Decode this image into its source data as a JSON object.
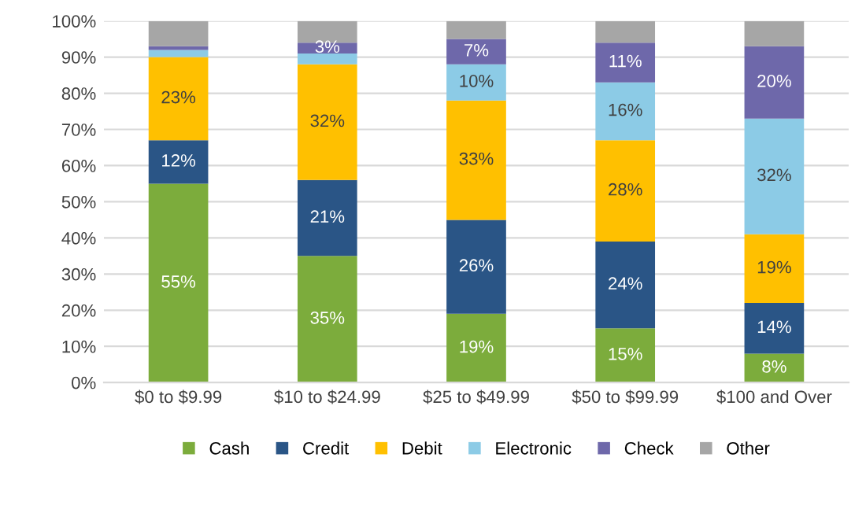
{
  "chart_data": {
    "type": "bar",
    "stacked": true,
    "categories": [
      "$0 to $9.99",
      "$10 to $24.99",
      "$25 to $49.99",
      "$50 to $99.99",
      "$100 and Over"
    ],
    "series": [
      {
        "name": "Cash",
        "color": "#7cac3c",
        "values": [
          55,
          35,
          19,
          15,
          8
        ],
        "value_labels": [
          "55%",
          "35%",
          "19%",
          "15%",
          "8%"
        ]
      },
      {
        "name": "Credit",
        "color": "#2a5586",
        "values": [
          12,
          21,
          26,
          24,
          14
        ],
        "value_labels": [
          "12%",
          "21%",
          "26%",
          "24%",
          "14%"
        ]
      },
      {
        "name": "Debit",
        "color": "#ffc000",
        "values": [
          23,
          32,
          33,
          28,
          19
        ],
        "value_labels": [
          "23%",
          "32%",
          "33%",
          "28%",
          "19%"
        ]
      },
      {
        "name": "Electronic",
        "color": "#8ccbe6",
        "values": [
          2,
          3,
          10,
          16,
          32
        ],
        "value_labels": [
          null,
          null,
          "10%",
          "16%",
          "32%"
        ]
      },
      {
        "name": "Check",
        "color": "#6e68aa",
        "values": [
          1,
          3,
          7,
          11,
          20
        ],
        "value_labels": [
          null,
          "3%",
          "7%",
          "11%",
          "20%"
        ]
      },
      {
        "name": "Other",
        "color": "#a6a6a6",
        "values": [
          7,
          6,
          5,
          6,
          7
        ],
        "value_labels": [
          null,
          null,
          null,
          null,
          null
        ]
      }
    ],
    "ylim": [
      0,
      100
    ],
    "yticks": [
      {
        "value": 0,
        "label": "0%"
      },
      {
        "value": 10,
        "label": "10%"
      },
      {
        "value": 20,
        "label": "20%"
      },
      {
        "value": 30,
        "label": "30%"
      },
      {
        "value": 40,
        "label": "40%"
      },
      {
        "value": 50,
        "label": "50%"
      },
      {
        "value": 60,
        "label": "60%"
      },
      {
        "value": 70,
        "label": "70%"
      },
      {
        "value": 80,
        "label": "80%"
      },
      {
        "value": 90,
        "label": "90%"
      },
      {
        "value": 100,
        "label": "100%"
      }
    ],
    "grid": "y",
    "legend": "bottom"
  }
}
